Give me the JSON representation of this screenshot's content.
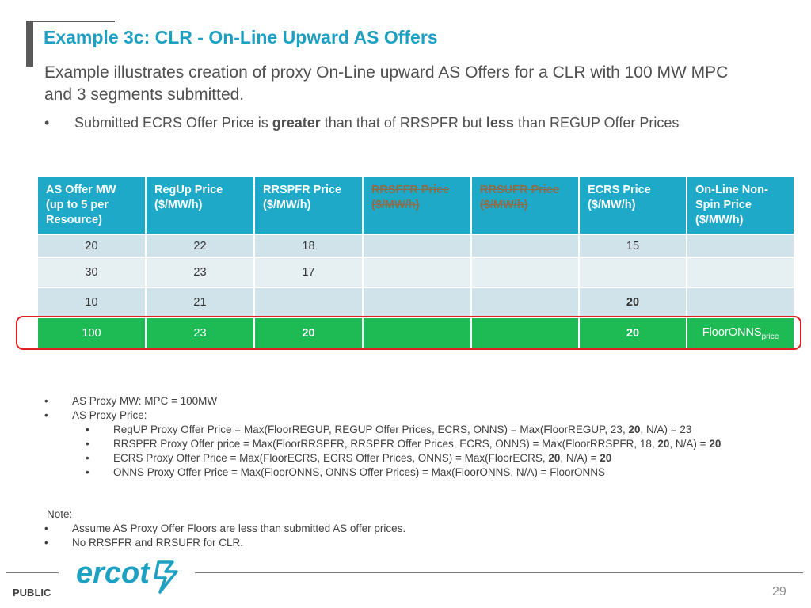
{
  "title": "Example 3c: CLR - On-Line Upward AS Offers",
  "subtitle": "Example illustrates creation of proxy On-Line upward AS Offers for a CLR with 100 MW MPC and 3 segments submitted.",
  "bullet": {
    "marker": "•",
    "t1": "Submitted ECRS Offer Price is ",
    "b1": "greater",
    "t2": " than that of RRSPFR but ",
    "b2": "less",
    "t3": " than REGUP Offer Prices"
  },
  "table": {
    "headers": [
      "AS Offer MW (up to 5 per Resource)",
      "RegUp Price ($/MW/h)",
      "RRSPFR Price ($/MW/h)",
      "RRSFFR Price ($/MW/h)",
      "RRSUFR Price ($/MW/h)",
      "ECRS Price ($/MW/h)",
      "On-Line Non-Spin Price ($/MW/h)"
    ],
    "rows": [
      [
        "20",
        "22",
        "18",
        "",
        "",
        "15",
        ""
      ],
      [
        "30",
        "23",
        "17",
        "",
        "",
        "",
        ""
      ],
      [
        "10",
        "21",
        "",
        "",
        "",
        "20",
        ""
      ]
    ],
    "proxy_row": {
      "mw": "100",
      "regup": "23",
      "rrspfr": "20",
      "rrsffr": "",
      "rrsufr": "",
      "ecrs": "20",
      "onns": "FloorONNS",
      "onns_sub": "price"
    },
    "highlight_color": "#e02020"
  },
  "notes": {
    "proxy_mw": "AS Proxy MW: MPC = 100MW",
    "proxy_price": "AS Proxy Price:",
    "regup": {
      "a": "RegUP Proxy Offer Price = Max(FloorREGUP, REGUP Offer Prices, ECRS, ONNS) = Max(FloorREGUP, 23, ",
      "b": "20",
      "c": ", N/A) = 23"
    },
    "rrspfr": {
      "a": "RRSPFR Proxy Offer price = Max(FloorRRSPFR, RRSPFR Offer Prices, ECRS, ONNS) = Max(FloorRRSPFR, 18, ",
      "b": "20",
      "c": ", N/A) = ",
      "d": "20"
    },
    "ecrs": {
      "a": "ECRS Proxy Offer Price = Max(FloorECRS, ECRS Offer Prices, ONNS) = Max(FloorECRS, ",
      "b": "20",
      "c": ", N/A) = ",
      "d": "20"
    },
    "onns": "ONNS Proxy Offer Price = Max(FloorONNS, ONNS Offer Prices) = Max(FloorONNS, N/A) = FloorONNS",
    "note_label": "Note:",
    "note1": "Assume AS Proxy Offer Floors are less than submitted AS offer prices.",
    "note2": "No RRSFFR and RRSUFR for CLR."
  },
  "footer": {
    "logo_text": "ercot",
    "public": "PUBLIC",
    "page": "29",
    "brand_color": "#1ea0c3"
  }
}
